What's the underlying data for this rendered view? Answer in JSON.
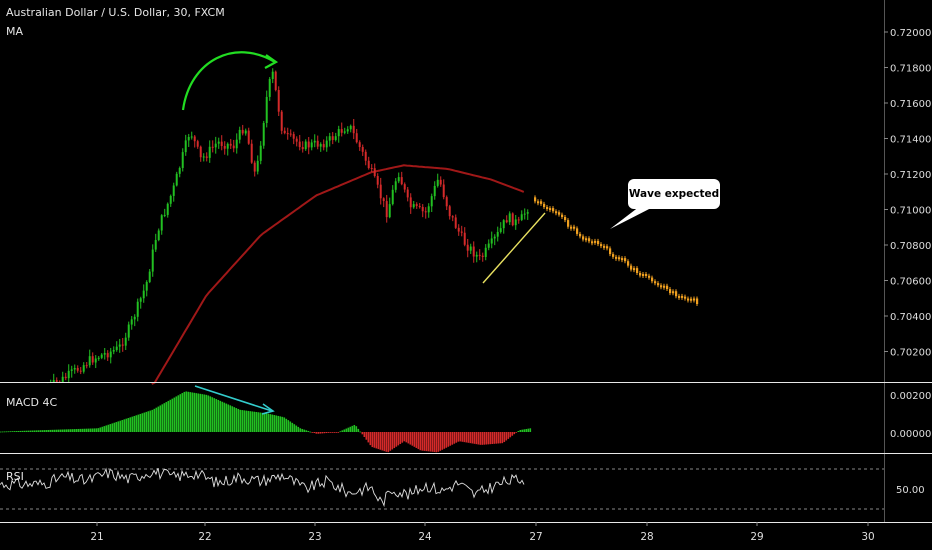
{
  "header": {
    "symbol_title": "Australian Dollar / U.S. Dollar, 30, FXCM",
    "indicator_label": "MA"
  },
  "panels": {
    "macd_label": "MACD 4C",
    "rsi_label": "RSI"
  },
  "annotation": {
    "callout_text": "Wave expected"
  },
  "colors": {
    "up_candle": "#22c022",
    "down_candle": "#d42a2a",
    "ma_line": "#a01818",
    "projection": "#f0a020",
    "arrow_green": "#22dd22",
    "arrow_cyan": "#33cccc",
    "trendline": "#e8e060",
    "rsi_line": "#e0e0e0",
    "axis_text": "#dddddd",
    "separator": "#e8e8e8"
  },
  "chart_data": [
    {
      "type": "candlestick",
      "title": "Australian Dollar / U.S. Dollar, 30, FXCM",
      "x_ticks": [
        "21",
        "22",
        "23",
        "24",
        "27",
        "28",
        "29",
        "30"
      ],
      "y_ticks": [
        "0.72000",
        "0.71800",
        "0.71600",
        "0.71400",
        "0.71200",
        "0.71000",
        "0.70800",
        "0.70600",
        "0.70400",
        "0.70200"
      ],
      "ylim": [
        0.7,
        0.723
      ],
      "price_path": [
        [
          20.55,
          0.7
        ],
        [
          20.7,
          0.7005
        ],
        [
          20.95,
          0.7016
        ],
        [
          21.2,
          0.7022
        ],
        [
          21.3,
          0.7034
        ],
        [
          21.45,
          0.7058
        ],
        [
          21.55,
          0.7088
        ],
        [
          21.7,
          0.7112
        ],
        [
          21.85,
          0.7145
        ],
        [
          21.95,
          0.7128
        ],
        [
          22.1,
          0.7138
        ],
        [
          22.25,
          0.7136
        ],
        [
          22.35,
          0.7148
        ],
        [
          22.45,
          0.7118
        ],
        [
          22.55,
          0.7163
        ],
        [
          22.6,
          0.7178
        ],
        [
          22.7,
          0.7142
        ],
        [
          22.9,
          0.7136
        ],
        [
          23.1,
          0.7138
        ],
        [
          23.3,
          0.7148
        ],
        [
          23.5,
          0.7122
        ],
        [
          23.65,
          0.7098
        ],
        [
          23.75,
          0.7122
        ],
        [
          23.85,
          0.7102
        ],
        [
          24.0,
          0.7098
        ],
        [
          24.12,
          0.7118
        ],
        [
          24.22,
          0.7098
        ],
        [
          24.35,
          0.7082
        ],
        [
          24.5,
          0.7072
        ],
        [
          24.65,
          0.7085
        ],
        [
          24.75,
          0.7096
        ],
        [
          24.85,
          0.7092
        ],
        [
          24.95,
          0.7103
        ]
      ],
      "ma_path": [
        [
          21.5,
          0.7
        ],
        [
          22.0,
          0.7052
        ],
        [
          22.5,
          0.7086
        ],
        [
          23.0,
          0.7108
        ],
        [
          23.5,
          0.7121
        ],
        [
          23.8,
          0.7125
        ],
        [
          24.2,
          0.7123
        ],
        [
          24.6,
          0.7117
        ],
        [
          24.9,
          0.711
        ]
      ],
      "projection_path": [
        [
          25.0,
          0.7107
        ],
        [
          25.2,
          0.7098
        ],
        [
          25.45,
          0.7085
        ],
        [
          25.7,
          0.7076
        ],
        [
          25.95,
          0.7065
        ],
        [
          26.2,
          0.7056
        ],
        [
          26.5,
          0.7048
        ]
      ]
    },
    {
      "type": "bar",
      "title": "MACD 4C",
      "y_ticks": [
        "0.00200",
        "0.00000"
      ],
      "ylim": [
        -0.0018,
        0.0026
      ],
      "x": [
        20.5,
        21.0,
        21.5,
        21.8,
        22.0,
        22.3,
        22.55,
        22.7,
        22.85,
        23.0,
        23.2,
        23.35,
        23.5,
        23.65,
        23.8,
        23.95,
        24.1,
        24.3,
        24.5,
        24.7,
        24.85,
        24.95
      ],
      "values": [
        0.0001,
        0.0002,
        0.0012,
        0.0022,
        0.002,
        0.0012,
        0.001,
        0.0008,
        0.0002,
        -0.0001,
        0.0,
        0.0004,
        -0.0008,
        -0.0011,
        -0.0005,
        -0.001,
        -0.0011,
        -0.0005,
        -0.0007,
        -0.0006,
        0.0001,
        0.0002
      ]
    },
    {
      "type": "line",
      "title": "RSI",
      "y_ticks": [
        "50.00"
      ],
      "ylim": [
        28,
        76
      ],
      "bands": [
        70,
        30
      ],
      "x": [
        20.5,
        20.7,
        20.9,
        21.1,
        21.3,
        21.5,
        21.7,
        21.9,
        22.1,
        22.3,
        22.5,
        22.7,
        22.9,
        23.1,
        23.3,
        23.5,
        23.6,
        23.7,
        23.85,
        24.0,
        24.15,
        24.3,
        24.45,
        24.6,
        24.75,
        24.9
      ],
      "values": [
        55,
        62,
        58,
        66,
        60,
        68,
        62,
        66,
        56,
        62,
        58,
        64,
        50,
        58,
        46,
        52,
        36,
        50,
        44,
        54,
        48,
        56,
        44,
        52,
        58,
        60
      ]
    }
  ]
}
